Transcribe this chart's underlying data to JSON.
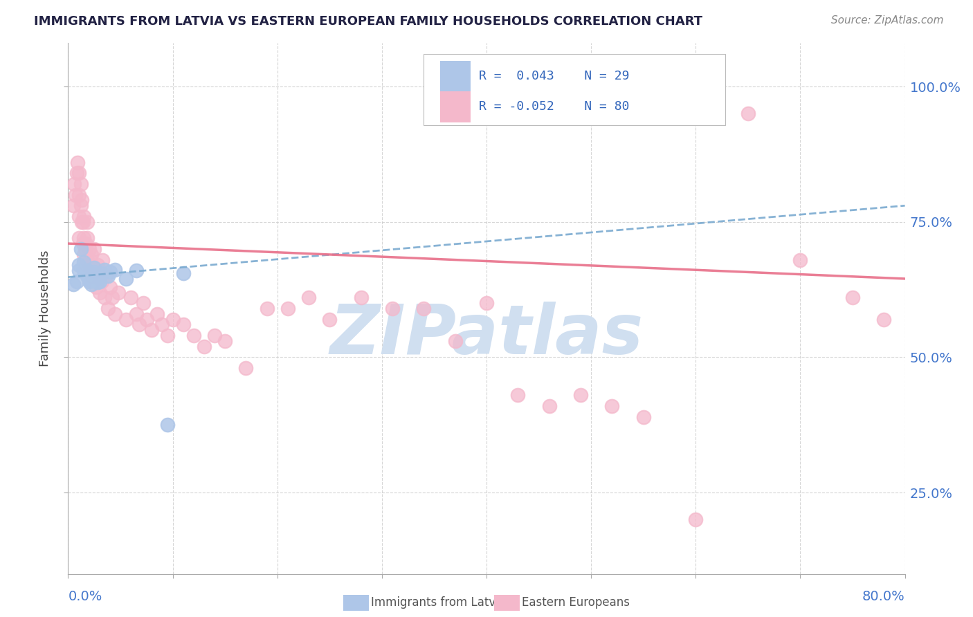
{
  "title": "IMMIGRANTS FROM LATVIA VS EASTERN EUROPEAN FAMILY HOUSEHOLDS CORRELATION CHART",
  "source_text": "Source: ZipAtlas.com",
  "ylabel": "Family Households",
  "y_tick_labels": [
    "25.0%",
    "50.0%",
    "75.0%",
    "100.0%"
  ],
  "y_tick_values": [
    0.25,
    0.5,
    0.75,
    1.0
  ],
  "x_min": 0.0,
  "x_max": 0.8,
  "y_min": 0.1,
  "y_max": 1.08,
  "blue_color": "#aec6e8",
  "pink_color": "#f4b8cb",
  "blue_line_color": "#7aaad0",
  "pink_line_color": "#e8708a",
  "title_color": "#222244",
  "axis_label_color": "#4477cc",
  "legend_R_color": "#3366bb",
  "background_color": "#ffffff",
  "watermark_color": "#d0dff0",
  "blue_scatter_x": [
    0.005,
    0.008,
    0.01,
    0.01,
    0.012,
    0.015,
    0.015,
    0.018,
    0.018,
    0.02,
    0.02,
    0.02,
    0.022,
    0.022,
    0.025,
    0.025,
    0.027,
    0.028,
    0.03,
    0.03,
    0.032,
    0.035,
    0.038,
    0.04,
    0.045,
    0.055,
    0.065,
    0.095,
    0.11
  ],
  "blue_scatter_y": [
    0.635,
    0.64,
    0.66,
    0.67,
    0.7,
    0.66,
    0.675,
    0.65,
    0.66,
    0.64,
    0.648,
    0.655,
    0.635,
    0.643,
    0.658,
    0.665,
    0.652,
    0.638,
    0.64,
    0.648,
    0.655,
    0.662,
    0.65,
    0.658,
    0.662,
    0.645,
    0.66,
    0.375,
    0.655
  ],
  "pink_scatter_x": [
    0.005,
    0.006,
    0.007,
    0.008,
    0.009,
    0.01,
    0.01,
    0.01,
    0.01,
    0.012,
    0.012,
    0.013,
    0.013,
    0.014,
    0.014,
    0.015,
    0.015,
    0.015,
    0.016,
    0.017,
    0.017,
    0.018,
    0.018,
    0.018,
    0.02,
    0.02,
    0.021,
    0.022,
    0.022,
    0.025,
    0.025,
    0.027,
    0.028,
    0.03,
    0.03,
    0.032,
    0.033,
    0.035,
    0.036,
    0.038,
    0.04,
    0.042,
    0.045,
    0.048,
    0.055,
    0.06,
    0.065,
    0.068,
    0.072,
    0.075,
    0.08,
    0.085,
    0.09,
    0.095,
    0.1,
    0.11,
    0.12,
    0.13,
    0.14,
    0.15,
    0.17,
    0.19,
    0.21,
    0.23,
    0.25,
    0.28,
    0.31,
    0.34,
    0.37,
    0.4,
    0.43,
    0.46,
    0.49,
    0.52,
    0.55,
    0.6,
    0.65,
    0.7,
    0.75,
    0.78
  ],
  "pink_scatter_y": [
    0.78,
    0.82,
    0.8,
    0.84,
    0.86,
    0.72,
    0.76,
    0.8,
    0.84,
    0.78,
    0.82,
    0.75,
    0.79,
    0.71,
    0.75,
    0.69,
    0.72,
    0.76,
    0.7,
    0.67,
    0.71,
    0.68,
    0.72,
    0.75,
    0.67,
    0.7,
    0.68,
    0.65,
    0.69,
    0.66,
    0.7,
    0.63,
    0.67,
    0.62,
    0.66,
    0.64,
    0.68,
    0.61,
    0.65,
    0.59,
    0.63,
    0.61,
    0.58,
    0.62,
    0.57,
    0.61,
    0.58,
    0.56,
    0.6,
    0.57,
    0.55,
    0.58,
    0.56,
    0.54,
    0.57,
    0.56,
    0.54,
    0.52,
    0.54,
    0.53,
    0.48,
    0.59,
    0.59,
    0.61,
    0.57,
    0.61,
    0.59,
    0.59,
    0.53,
    0.6,
    0.43,
    0.41,
    0.43,
    0.41,
    0.39,
    0.2,
    0.95,
    0.68,
    0.61,
    0.57
  ],
  "blue_line_y_at_0": 0.648,
  "blue_line_y_at_80": 0.78,
  "pink_line_y_at_0": 0.71,
  "pink_line_y_at_80": 0.645
}
